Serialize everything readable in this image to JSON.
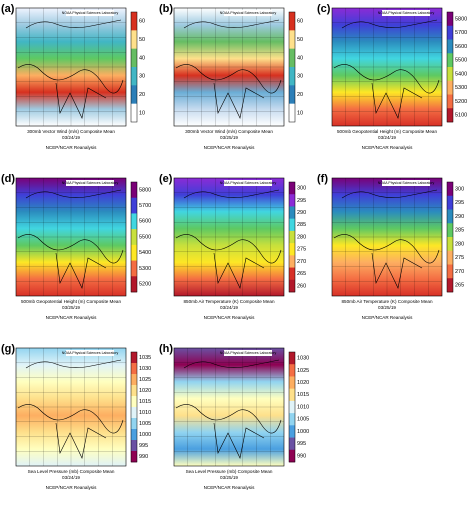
{
  "panels": [
    {
      "label": "(a)",
      "agency": "NOAA Physical Sciences Laboratory",
      "caption": "300mb Vector Wind (m/s) Composite Mean",
      "date": "03/24/19",
      "source": "NCEP/NCAR Reanalysis",
      "ticks": [
        "60",
        "50",
        "40",
        "30",
        "20",
        "10"
      ]
    },
    {
      "label": "(b)",
      "agency": "NOAA Physical Sciences Laboratory",
      "caption": "300mb Vector Wind (m/s) Composite Mean",
      "date": "03/25/19",
      "source": "NCEP/NCAR Reanalysis",
      "ticks": [
        "60",
        "50",
        "40",
        "30",
        "20",
        "10"
      ]
    },
    {
      "label": "(c)",
      "agency": "NOAA Physical Sciences Laboratory",
      "caption": "500mb Geopotential Height (m) Composite Mean",
      "date": "03/24/19",
      "source": "NCEP/NCAR Reanalysis",
      "ticks": [
        "5800",
        "5700",
        "5600",
        "5500",
        "5400",
        "5300",
        "5200",
        "5100"
      ]
    },
    {
      "label": "(d)",
      "agency": "NOAA Physical Sciences Laboratory",
      "caption": "500mb Geopotential Height (m) Composite Mean",
      "date": "03/25/19",
      "source": "NCEP/NCAR Reanalysis",
      "ticks": [
        "5800",
        "5700",
        "5600",
        "5500",
        "5400",
        "5300",
        "5200"
      ]
    },
    {
      "label": "(e)",
      "agency": "NOAA Physical Sciences Laboratory",
      "caption": "850mb Air Temperature (K) Composite Mean",
      "date": "03/24/19",
      "source": "NCEP/NCAR Reanalysis",
      "ticks": [
        "300",
        "295",
        "290",
        "285",
        "280",
        "275",
        "270",
        "265",
        "260"
      ]
    },
    {
      "label": "(f)",
      "agency": "NOAA Physical Sciences Laboratory",
      "caption": "850mb Air Temperature (K) Composite Mean",
      "date": "03/25/19",
      "source": "NCEP/NCAR Reanalysis",
      "ticks": [
        "300",
        "295",
        "290",
        "285",
        "280",
        "275",
        "270",
        "265"
      ]
    },
    {
      "label": "(g)",
      "agency": "NOAA Physical Sciences Laboratory",
      "caption": "Sea Level Pressure (mb) Composite Mean",
      "date": "03/24/19",
      "source": "NCEP/NCAR Reanalysis",
      "ticks": [
        "1035",
        "1030",
        "1025",
        "1020",
        "1015",
        "1010",
        "1005",
        "1000",
        "995",
        "990"
      ]
    },
    {
      "label": "(h)",
      "agency": "NOAA Physical Sciences Laboratory",
      "caption": "Sea Level Pressure (mb) Composite Mean",
      "date": "03/25/19",
      "source": "NCEP/NCAR Reanalysis",
      "ticks": [
        "1030",
        "1025",
        "1020",
        "1015",
        "1010",
        "1005",
        "1000",
        "995",
        "990"
      ]
    }
  ]
}
